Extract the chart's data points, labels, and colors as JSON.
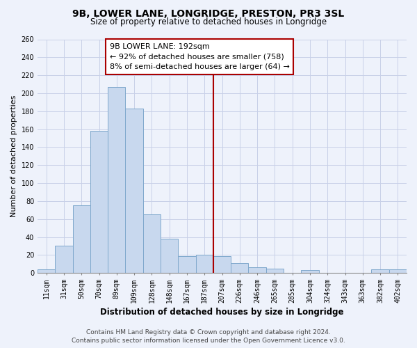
{
  "title": "9B, LOWER LANE, LONGRIDGE, PRESTON, PR3 3SL",
  "subtitle": "Size of property relative to detached houses in Longridge",
  "xlabel": "Distribution of detached houses by size in Longridge",
  "ylabel": "Number of detached properties",
  "bar_labels": [
    "11sqm",
    "31sqm",
    "50sqm",
    "70sqm",
    "89sqm",
    "109sqm",
    "128sqm",
    "148sqm",
    "167sqm",
    "187sqm",
    "207sqm",
    "226sqm",
    "246sqm",
    "265sqm",
    "285sqm",
    "304sqm",
    "324sqm",
    "343sqm",
    "363sqm",
    "382sqm",
    "402sqm"
  ],
  "bar_values": [
    4,
    30,
    75,
    158,
    207,
    183,
    65,
    38,
    19,
    20,
    19,
    11,
    6,
    5,
    0,
    3,
    0,
    0,
    0,
    4,
    4
  ],
  "bar_color": "#c8d8ee",
  "bar_edge_color": "#7fa8cc",
  "vline_color": "#aa0000",
  "annotation_text": "9B LOWER LANE: 192sqm\n← 92% of detached houses are smaller (758)\n8% of semi-detached houses are larger (64) →",
  "annotation_box_facecolor": "#ffffff",
  "annotation_box_edgecolor": "#aa0000",
  "ylim": [
    0,
    260
  ],
  "yticks": [
    0,
    20,
    40,
    60,
    80,
    100,
    120,
    140,
    160,
    180,
    200,
    220,
    240,
    260
  ],
  "footer_line1": "Contains HM Land Registry data © Crown copyright and database right 2024.",
  "footer_line2": "Contains public sector information licensed under the Open Government Licence v3.0.",
  "bg_color": "#eef2fb",
  "grid_color": "#c8d0e8",
  "title_fontsize": 10,
  "subtitle_fontsize": 8.5,
  "xlabel_fontsize": 8.5,
  "ylabel_fontsize": 8,
  "tick_fontsize": 7,
  "annotation_fontsize": 8,
  "footer_fontsize": 6.5
}
